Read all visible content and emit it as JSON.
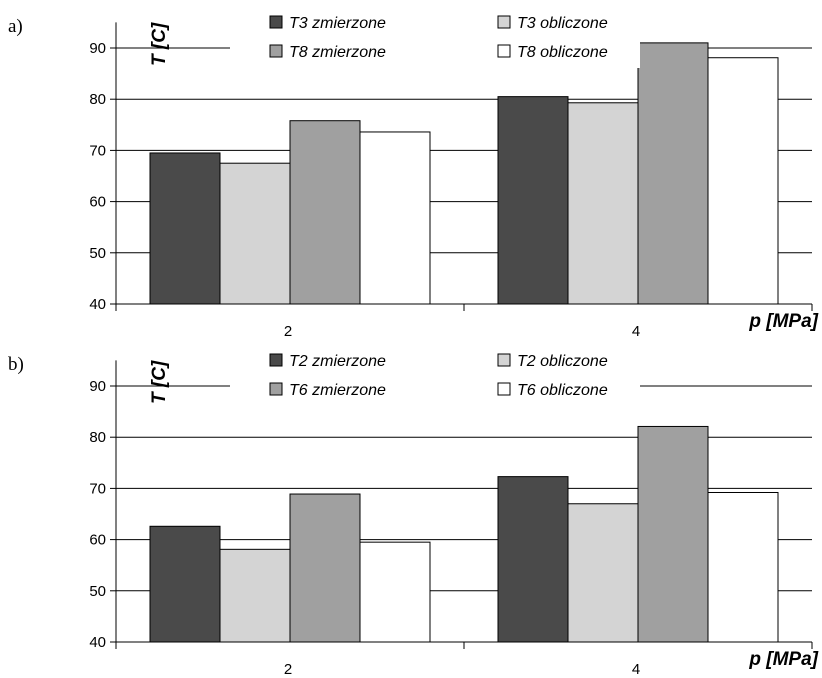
{
  "chart_data": [
    {
      "type": "bar",
      "panel_label": "a)",
      "categories": [
        "2",
        "4"
      ],
      "ylabel": "T [C]",
      "xlabel": "p [MPa]",
      "ylim": [
        40,
        95
      ],
      "yticks": [
        "40",
        "50",
        "60",
        "70",
        "80",
        "90"
      ],
      "grid": true,
      "legend": "top",
      "series": [
        {
          "name": "T3 zmierzone",
          "values": [
            69.5,
            80.5
          ],
          "color": "#4a4a4a"
        },
        {
          "name": "T3 obliczone",
          "values": [
            67.5,
            79.3
          ],
          "color": "#d4d4d4"
        },
        {
          "name": "T8 zmierzone",
          "values": [
            75.8,
            91.0
          ],
          "color": "#a0a0a0"
        },
        {
          "name": "T8 obliczone",
          "values": [
            73.6,
            88.1
          ],
          "color": "#ffffff"
        }
      ]
    },
    {
      "type": "bar",
      "panel_label": "b)",
      "categories": [
        "2",
        "4"
      ],
      "ylabel": "T [C]",
      "xlabel": "p [MPa]",
      "ylim": [
        40,
        95
      ],
      "yticks": [
        "40",
        "50",
        "60",
        "70",
        "80",
        "90"
      ],
      "grid": true,
      "legend": "top",
      "series": [
        {
          "name": "T2 zmierzone",
          "values": [
            62.6,
            72.3
          ],
          "color": "#4a4a4a"
        },
        {
          "name": "T2 obliczone",
          "values": [
            58.1,
            67.0
          ],
          "color": "#d4d4d4"
        },
        {
          "name": "T6 zmierzone",
          "values": [
            68.9,
            82.1
          ],
          "color": "#a0a0a0"
        },
        {
          "name": "T6 obliczone",
          "values": [
            59.5,
            69.2
          ],
          "color": "#ffffff"
        }
      ]
    }
  ]
}
